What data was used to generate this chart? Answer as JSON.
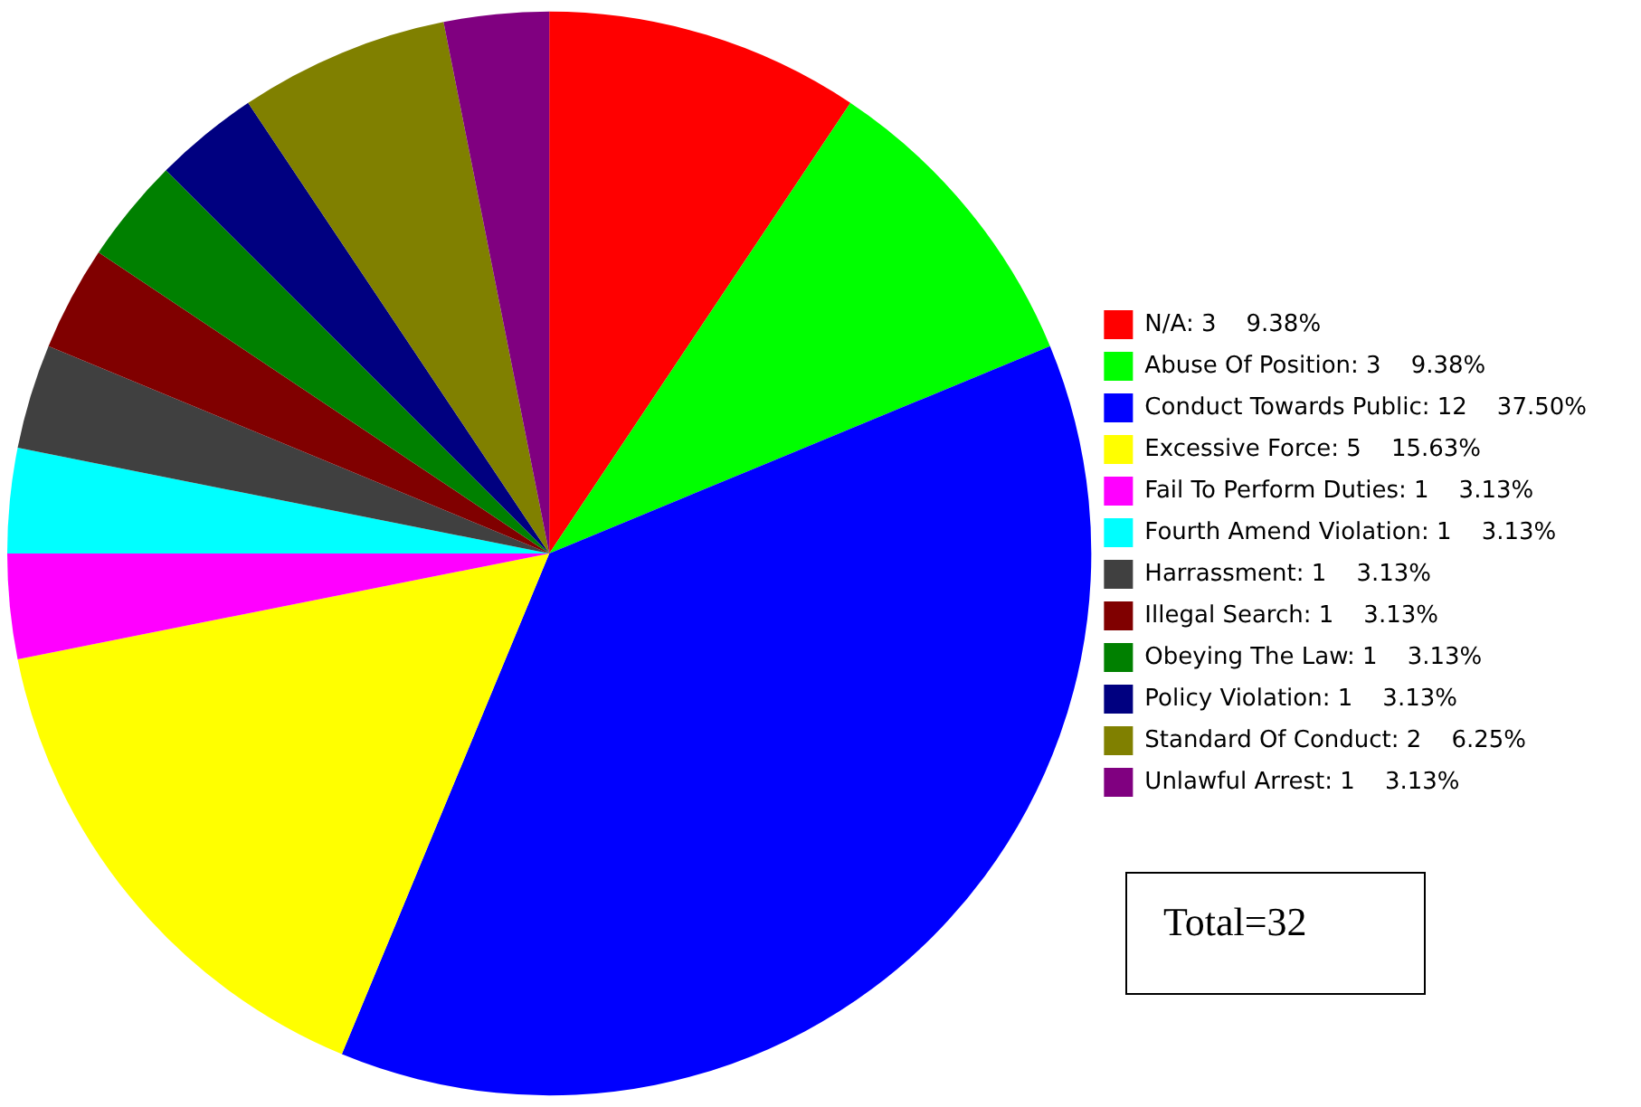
{
  "chart_data": {
    "type": "pie",
    "categories": [
      "N/A: 3    9.38%",
      "Abuse Of Position: 3    9.38%",
      "Conduct Towards Public: 12    37.50%",
      "Excessive Force: 5    15.63%",
      "Fail To Perform Duties: 1    3.13%",
      "Fourth Amend Violation: 1    3.13%",
      "Harrassment: 1    3.13%",
      "Illegal Search: 1    3.13%",
      "Obeying The Law: 1    3.13%",
      "Policy Violation: 1    3.13%",
      "Standard Of Conduct: 2    6.25%",
      "Unlawful Arrest: 1    3.13%"
    ],
    "values": [
      3,
      3,
      12,
      5,
      1,
      1,
      1,
      1,
      1,
      1,
      2,
      1
    ],
    "colors": [
      "#ff0000",
      "#00ff00",
      "#0000ff",
      "#ffff00",
      "#ff00ff",
      "#00ffff",
      "#404040",
      "#800000",
      "#008000",
      "#000080",
      "#808000",
      "#800080"
    ],
    "legend": "right",
    "annotations": [
      "Total=32"
    ]
  }
}
